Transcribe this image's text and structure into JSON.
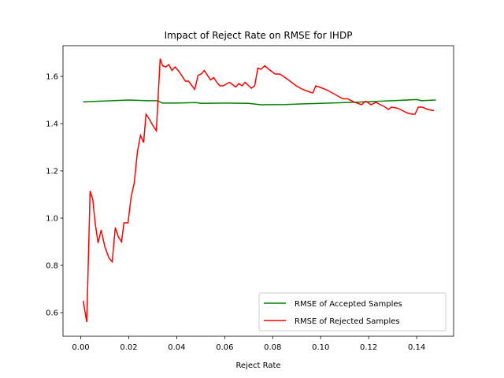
{
  "chart_data": {
    "type": "line",
    "title": "Impact of Reject Rate on RMSE for IHDP",
    "xlabel": "Reject Rate",
    "xlim": [
      -0.0074,
      0.1554
    ],
    "ylim": [
      0.5,
      1.73
    ],
    "xticks": [
      {
        "value": 0,
        "label": "0.00"
      },
      0.02,
      0.04,
      0.06,
      0.08,
      {
        "value": 0.1,
        "label": "0.10"
      },
      0.12,
      0.14
    ],
    "yticks": [
      0.6,
      0.8,
      {
        "value": 1.0,
        "label": "1.0"
      },
      1.2,
      1.4,
      1.6
    ],
    "legend": "lower right",
    "series": [
      {
        "name": "RMSE of Accepted Samples",
        "color": "#008000",
        "x": [
          0.001,
          0.01,
          0.02,
          0.028,
          0.032,
          0.034,
          0.04,
          0.048,
          0.05,
          0.06,
          0.07,
          0.075,
          0.085,
          0.1,
          0.115,
          0.13,
          0.14,
          0.142,
          0.148
        ],
        "values": [
          1.492,
          1.496,
          1.5,
          1.497,
          1.497,
          1.487,
          1.487,
          1.489,
          1.486,
          1.487,
          1.486,
          1.48,
          1.481,
          1.486,
          1.491,
          1.497,
          1.502,
          1.497,
          1.5
        ]
      },
      {
        "name": "RMSE of Rejected Samples",
        "color": "#ff0000",
        "x": [
          0.001,
          0.0025,
          0.0039,
          0.005,
          0.006,
          0.0072,
          0.0085,
          0.01,
          0.0118,
          0.0131,
          0.0144,
          0.0157,
          0.017,
          0.018,
          0.0197,
          0.021,
          0.0223,
          0.0236,
          0.0249,
          0.0262,
          0.0272,
          0.0285,
          0.0302,
          0.0315,
          0.0331,
          0.0341,
          0.0354,
          0.0367,
          0.038,
          0.0393,
          0.041,
          0.0436,
          0.0449,
          0.0475,
          0.0489,
          0.0502,
          0.0515,
          0.0531,
          0.0541,
          0.0554,
          0.0567,
          0.058,
          0.0593,
          0.062,
          0.0646,
          0.0659,
          0.0672,
          0.0685,
          0.0711,
          0.0725,
          0.0738,
          0.0751,
          0.0767,
          0.0784,
          0.0797,
          0.081,
          0.083,
          0.0852,
          0.0872,
          0.0898,
          0.0925,
          0.0951,
          0.0967,
          0.098,
          0.1007,
          0.102,
          0.1039,
          0.1066,
          0.1092,
          0.1111,
          0.1144,
          0.117,
          0.1187,
          0.121,
          0.123,
          0.1249,
          0.1269,
          0.1282,
          0.1295,
          0.1321,
          0.1341,
          0.1361,
          0.138,
          0.1393,
          0.1407,
          0.1423,
          0.1446,
          0.1472
        ],
        "values": [
          0.65,
          0.56,
          1.115,
          1.08,
          0.98,
          0.895,
          0.95,
          0.88,
          0.83,
          0.815,
          0.96,
          0.92,
          0.9,
          0.98,
          0.98,
          1.09,
          1.15,
          1.28,
          1.35,
          1.32,
          1.44,
          1.42,
          1.39,
          1.37,
          1.675,
          1.645,
          1.64,
          1.65,
          1.625,
          1.64,
          1.62,
          1.58,
          1.58,
          1.545,
          1.605,
          1.61,
          1.625,
          1.6,
          1.585,
          1.595,
          1.575,
          1.56,
          1.56,
          1.575,
          1.555,
          1.57,
          1.56,
          1.575,
          1.55,
          1.56,
          1.635,
          1.63,
          1.645,
          1.63,
          1.62,
          1.61,
          1.61,
          1.595,
          1.58,
          1.56,
          1.545,
          1.535,
          1.53,
          1.56,
          1.55,
          1.545,
          1.535,
          1.52,
          1.505,
          1.505,
          1.49,
          1.48,
          1.495,
          1.48,
          1.49,
          1.48,
          1.47,
          1.46,
          1.47,
          1.465,
          1.455,
          1.445,
          1.44,
          1.44,
          1.47,
          1.47,
          1.46,
          1.455
        ]
      }
    ]
  }
}
